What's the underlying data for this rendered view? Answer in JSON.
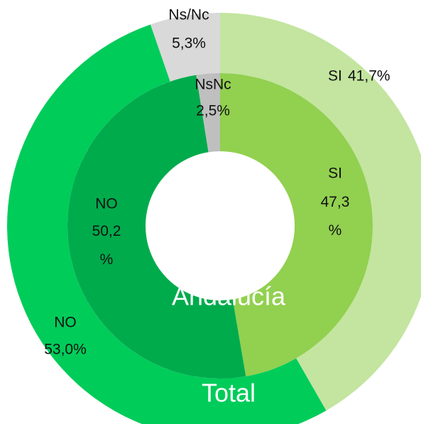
{
  "chart_data": {
    "type": "donut",
    "series": [
      {
        "name": "Total",
        "categories": [
          "SI",
          "NO",
          "Ns/Nc"
        ],
        "values": [
          41.7,
          53.0,
          5.3
        ],
        "value_labels": [
          "41,7%",
          "53,0%",
          "5,3%"
        ],
        "colors": [
          "#c3e59f",
          "#00cc5a",
          "#d9d9d9"
        ]
      },
      {
        "name": "Andalucía",
        "categories": [
          "SI",
          "NO",
          "NsNc"
        ],
        "values": [
          47.3,
          50.2,
          2.5
        ],
        "value_labels": [
          "47,3 %",
          "50,2 %",
          "2,5%"
        ],
        "colors": [
          "#92d050",
          "#00ab4c",
          "#bfbfbf"
        ]
      }
    ]
  }
}
